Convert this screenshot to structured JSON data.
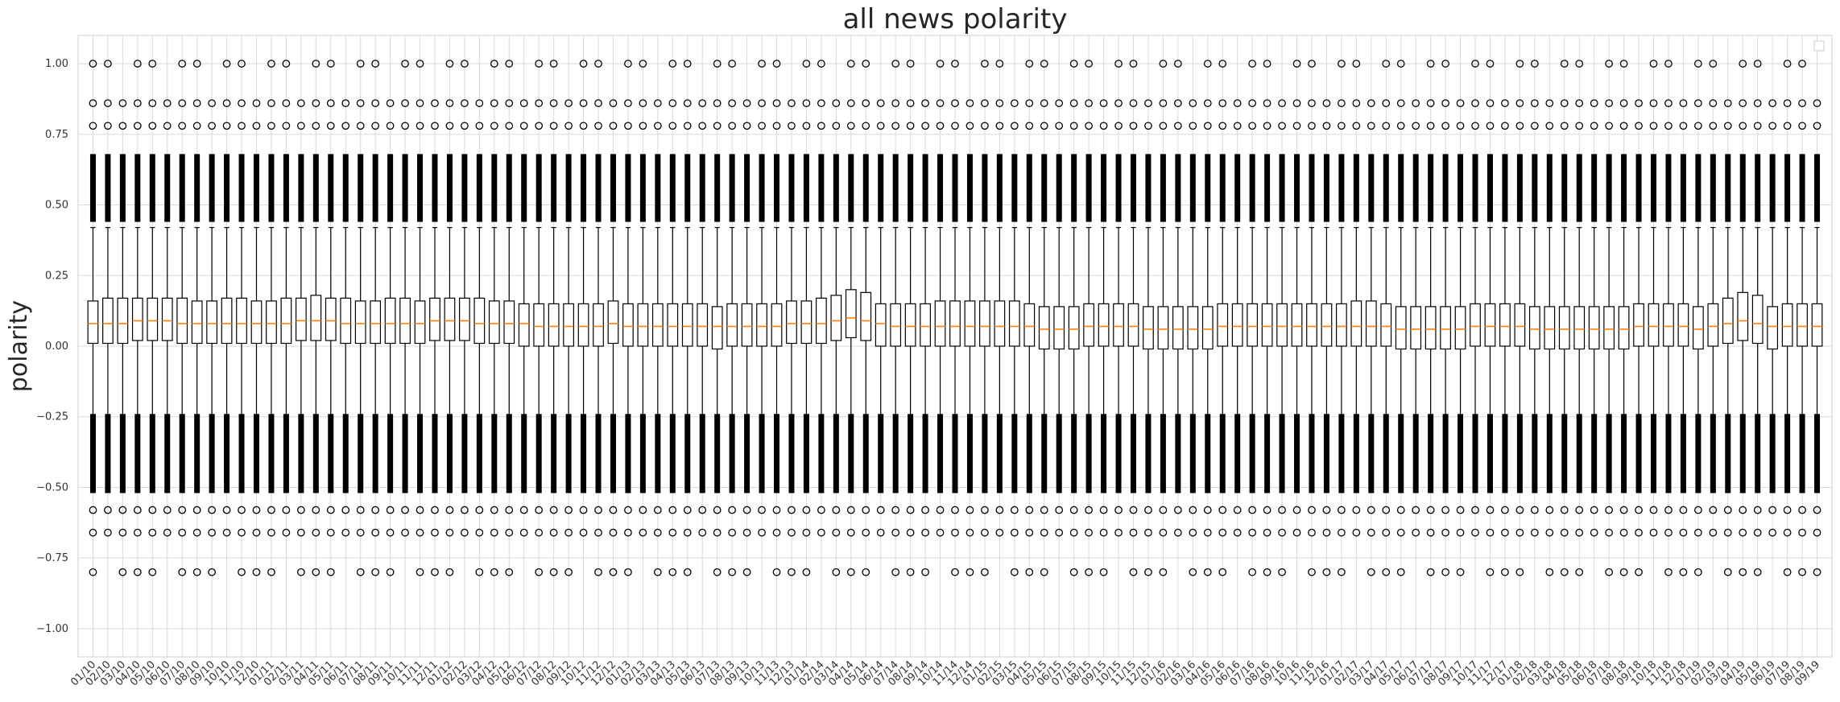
{
  "chart_data": {
    "type": "boxplot",
    "title": "all news polarity",
    "ylabel": "polarity",
    "xlabel": "",
    "ylim": [
      -1.1,
      1.1
    ],
    "yticks": [
      -1.0,
      -0.75,
      -0.5,
      -0.25,
      0.0,
      0.25,
      0.5,
      0.75,
      1.0
    ],
    "ytick_labels": [
      "−1.00",
      "−0.75",
      "−0.50",
      "−0.25",
      "0.00",
      "0.25",
      "0.50",
      "0.75",
      "1.00"
    ],
    "grid": true,
    "legend": "top-right (empty)",
    "colors": {
      "box": "#000000",
      "median": "#ff7f0e",
      "grid": "#d9d9d9",
      "background": "#ffffff"
    },
    "categories": [
      "01/10",
      "02/10",
      "03/10",
      "04/10",
      "05/10",
      "06/10",
      "07/10",
      "08/10",
      "09/10",
      "10/10",
      "11/10",
      "12/10",
      "01/11",
      "02/11",
      "03/11",
      "04/11",
      "05/11",
      "06/11",
      "07/11",
      "08/11",
      "09/11",
      "10/11",
      "11/11",
      "12/11",
      "01/12",
      "02/12",
      "03/12",
      "04/12",
      "05/12",
      "06/12",
      "07/12",
      "08/12",
      "09/12",
      "10/12",
      "11/12",
      "12/12",
      "01/13",
      "02/13",
      "03/13",
      "04/13",
      "05/13",
      "06/13",
      "07/13",
      "08/13",
      "09/13",
      "10/13",
      "11/13",
      "12/13",
      "01/14",
      "02/14",
      "03/14",
      "04/14",
      "05/14",
      "06/14",
      "07/14",
      "08/14",
      "09/14",
      "10/14",
      "11/14",
      "12/14",
      "01/15",
      "02/15",
      "03/15",
      "04/15",
      "05/15",
      "06/15",
      "07/15",
      "08/15",
      "09/15",
      "10/15",
      "11/15",
      "12/15",
      "01/16",
      "02/16",
      "03/16",
      "04/16",
      "05/16",
      "06/16",
      "07/16",
      "08/16",
      "09/16",
      "10/16",
      "11/16",
      "12/16",
      "01/17",
      "02/17",
      "03/17",
      "04/17",
      "05/17",
      "06/17",
      "07/17",
      "08/17",
      "09/17",
      "10/17",
      "11/17",
      "12/17",
      "01/18",
      "02/18",
      "03/18",
      "04/18",
      "05/18",
      "06/18",
      "07/18",
      "08/18",
      "09/18",
      "10/18",
      "11/18",
      "12/18",
      "01/19",
      "02/19",
      "03/19",
      "04/19",
      "05/19",
      "06/19",
      "07/19",
      "08/19",
      "09/19"
    ],
    "q1": [
      0.01,
      0.01,
      0.01,
      0.02,
      0.02,
      0.02,
      0.01,
      0.01,
      0.01,
      0.01,
      0.01,
      0.01,
      0.01,
      0.01,
      0.02,
      0.02,
      0.02,
      0.01,
      0.01,
      0.01,
      0.01,
      0.01,
      0.01,
      0.02,
      0.02,
      0.02,
      0.01,
      0.01,
      0.01,
      0.0,
      0.0,
      0.0,
      0.0,
      0.0,
      0.0,
      0.01,
      0.0,
      0.0,
      0.0,
      0.0,
      0.0,
      0.0,
      -0.01,
      0.0,
      0.0,
      0.0,
      0.0,
      0.01,
      0.01,
      0.01,
      0.02,
      0.03,
      0.02,
      0.0,
      0.0,
      0.0,
      0.0,
      0.0,
      0.0,
      0.0,
      0.0,
      0.0,
      0.0,
      0.0,
      -0.01,
      -0.01,
      -0.01,
      0.0,
      0.0,
      0.0,
      0.0,
      -0.01,
      -0.01,
      -0.01,
      -0.01,
      -0.01,
      0.0,
      0.0,
      0.0,
      0.0,
      0.0,
      0.0,
      0.0,
      0.0,
      0.0,
      0.0,
      0.0,
      0.0,
      -0.01,
      -0.01,
      -0.01,
      -0.01,
      -0.01,
      0.0,
      0.0,
      0.0,
      0.0,
      -0.01,
      -0.01,
      -0.01,
      -0.01,
      -0.01,
      -0.01,
      -0.01,
      0.0,
      0.0,
      0.0,
      0.0,
      -0.01,
      0.0,
      0.01,
      0.02,
      0.01,
      -0.01,
      0.0,
      0.0,
      0.0
    ],
    "median": [
      0.08,
      0.08,
      0.08,
      0.09,
      0.09,
      0.09,
      0.08,
      0.08,
      0.08,
      0.08,
      0.08,
      0.08,
      0.08,
      0.08,
      0.09,
      0.09,
      0.09,
      0.08,
      0.08,
      0.08,
      0.08,
      0.08,
      0.08,
      0.09,
      0.09,
      0.09,
      0.08,
      0.08,
      0.08,
      0.08,
      0.07,
      0.07,
      0.07,
      0.07,
      0.07,
      0.08,
      0.07,
      0.07,
      0.07,
      0.07,
      0.07,
      0.07,
      0.07,
      0.07,
      0.07,
      0.07,
      0.07,
      0.08,
      0.08,
      0.08,
      0.09,
      0.1,
      0.09,
      0.08,
      0.07,
      0.07,
      0.07,
      0.07,
      0.07,
      0.07,
      0.07,
      0.07,
      0.07,
      0.07,
      0.06,
      0.06,
      0.06,
      0.07,
      0.07,
      0.07,
      0.07,
      0.06,
      0.06,
      0.06,
      0.06,
      0.06,
      0.07,
      0.07,
      0.07,
      0.07,
      0.07,
      0.07,
      0.07,
      0.07,
      0.07,
      0.07,
      0.07,
      0.07,
      0.06,
      0.06,
      0.06,
      0.06,
      0.06,
      0.07,
      0.07,
      0.07,
      0.07,
      0.06,
      0.06,
      0.06,
      0.06,
      0.06,
      0.06,
      0.06,
      0.07,
      0.07,
      0.07,
      0.07,
      0.06,
      0.07,
      0.08,
      0.09,
      0.08,
      0.07,
      0.07,
      0.07,
      0.07
    ],
    "q3": [
      0.16,
      0.17,
      0.17,
      0.17,
      0.17,
      0.17,
      0.17,
      0.16,
      0.16,
      0.17,
      0.17,
      0.16,
      0.16,
      0.17,
      0.17,
      0.18,
      0.17,
      0.17,
      0.16,
      0.16,
      0.17,
      0.17,
      0.16,
      0.17,
      0.17,
      0.17,
      0.17,
      0.16,
      0.16,
      0.15,
      0.15,
      0.15,
      0.15,
      0.15,
      0.15,
      0.16,
      0.15,
      0.15,
      0.15,
      0.15,
      0.15,
      0.15,
      0.14,
      0.15,
      0.15,
      0.15,
      0.15,
      0.16,
      0.16,
      0.17,
      0.18,
      0.2,
      0.19,
      0.15,
      0.15,
      0.15,
      0.15,
      0.16,
      0.16,
      0.16,
      0.16,
      0.16,
      0.16,
      0.15,
      0.14,
      0.14,
      0.14,
      0.15,
      0.15,
      0.15,
      0.15,
      0.14,
      0.14,
      0.14,
      0.14,
      0.14,
      0.15,
      0.15,
      0.15,
      0.15,
      0.15,
      0.15,
      0.15,
      0.15,
      0.15,
      0.16,
      0.16,
      0.15,
      0.14,
      0.14,
      0.14,
      0.14,
      0.14,
      0.15,
      0.15,
      0.15,
      0.15,
      0.14,
      0.14,
      0.14,
      0.14,
      0.14,
      0.14,
      0.14,
      0.15,
      0.15,
      0.15,
      0.15,
      0.14,
      0.15,
      0.17,
      0.19,
      0.18,
      0.14,
      0.15,
      0.15,
      0.15
    ],
    "whisker_low": -0.25,
    "whisker_high": 0.42,
    "common_outliers": [
      1.0,
      -0.8
    ]
  }
}
